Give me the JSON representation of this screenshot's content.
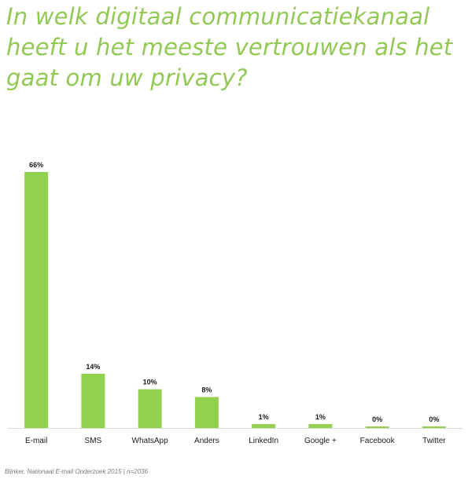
{
  "title_lines": [
    "In welk digitaal communicatiekanaal",
    "heeft u het meeste vertrouwen als het",
    "gaat om uw privacy?"
  ],
  "source": "Blinker, Nationaal E-mail Onderzoek 2015 | n=2036",
  "colors": {
    "bar": "#92d050",
    "title": "#92c955",
    "axis": "#d9d9d9",
    "text": "#1a1a1a"
  },
  "chart_data": {
    "type": "bar",
    "title": "In welk digitaal communicatiekanaal heeft u het meeste vertrouwen als het gaat om uw privacy?",
    "categories": [
      "E-mail",
      "SMS",
      "WhatsApp",
      "Anders",
      "LinkedIn",
      "Google +",
      "Facebook",
      "Twitter"
    ],
    "values": [
      66,
      14,
      10,
      8,
      1,
      1,
      0,
      0
    ],
    "data_labels": [
      "66%",
      "14%",
      "10%",
      "8%",
      "1%",
      "1%",
      "0%",
      "0%"
    ],
    "unit": "%",
    "ylim": [
      0,
      66
    ],
    "grid": false,
    "legend": "none"
  }
}
